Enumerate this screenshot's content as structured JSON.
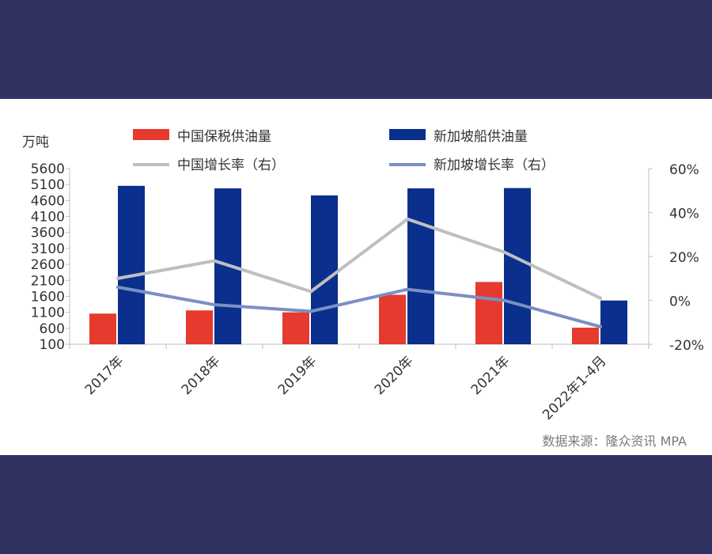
{
  "chart_data": {
    "type": "bar",
    "title": "",
    "left_unit": "万吨",
    "categories": [
      "2017年",
      "2018年",
      "2019年",
      "2020年",
      "2021年",
      "2022年1-4月"
    ],
    "series": [
      {
        "name": "中国保税供油量",
        "kind": "bar",
        "axis": "left",
        "color": "#E63A2E",
        "values": [
          1060,
          1160,
          1100,
          1650,
          2050,
          620
        ]
      },
      {
        "name": "新加坡船供油量",
        "kind": "bar",
        "axis": "left",
        "color": "#0A2F8C",
        "values": [
          5060,
          4980,
          4760,
          4980,
          4990,
          1470
        ]
      },
      {
        "name": "中国增长率（右）",
        "kind": "line",
        "axis": "right",
        "color": "#BFBFBF",
        "values": [
          10,
          18,
          4,
          37,
          22,
          1
        ]
      },
      {
        "name": "新加坡增长率（右）",
        "kind": "line",
        "axis": "right",
        "color": "#7A8FC4",
        "values": [
          6,
          -2,
          -5,
          5,
          0,
          -12
        ]
      }
    ],
    "left_axis": {
      "min": 100,
      "max": 5600,
      "ticks": [
        100,
        600,
        1100,
        1600,
        2100,
        2600,
        3100,
        3600,
        4100,
        4600,
        5100,
        5600
      ]
    },
    "right_axis": {
      "min": -20,
      "max": 60,
      "ticks": [
        "-20%",
        "0%",
        "20%",
        "40%",
        "60%"
      ],
      "tick_values": [
        -20,
        0,
        20,
        40,
        60
      ]
    },
    "legend_position": "top",
    "source": "数据来源：隆众资讯 MPA"
  }
}
